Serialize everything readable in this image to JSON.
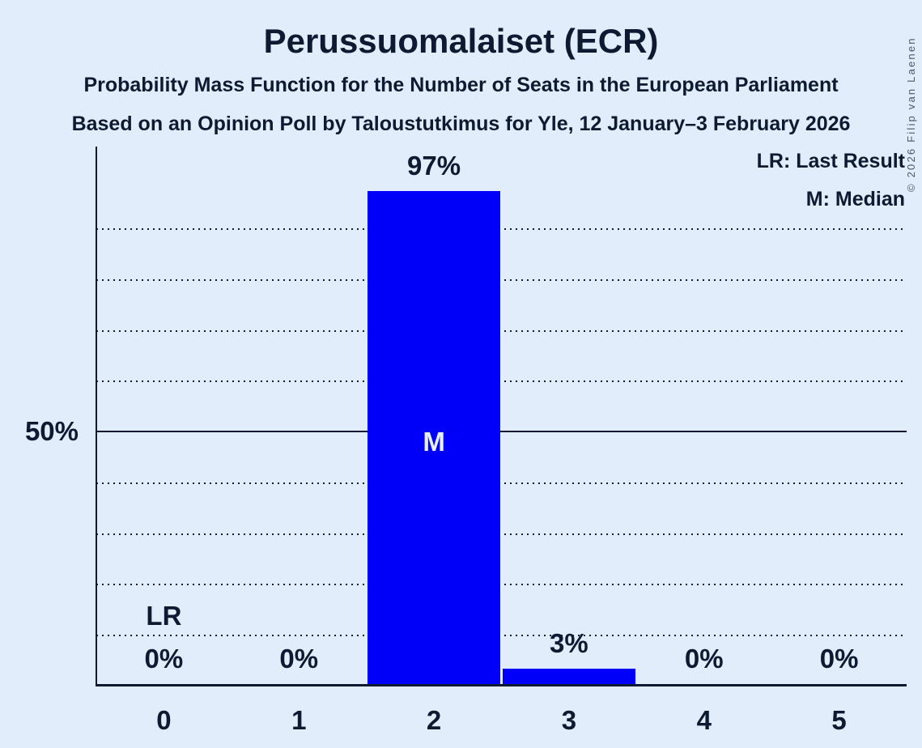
{
  "header": {
    "title": "Perussuomalaiset (ECR)",
    "subtitle_line1": "Probability Mass Function for the Number of Seats in the European Parliament",
    "subtitle_line2": "Based on an Opinion Poll by Taloustutkimus for Yle, 12 January–3 February 2026"
  },
  "legend": {
    "last_result": "LR: Last Result",
    "median": "M: Median"
  },
  "copyright": "© 2026 Filip van Laenen",
  "chart_data": {
    "type": "bar",
    "title": "Perussuomalaiset (ECR)",
    "categories": [
      "0",
      "1",
      "2",
      "3",
      "4",
      "5"
    ],
    "values": [
      0,
      0,
      97,
      3,
      0,
      0
    ],
    "value_labels": [
      "0%",
      "0%",
      "97%",
      "3%",
      "0%",
      "0%"
    ],
    "xlabel": "",
    "ylabel": "",
    "ylim": [
      0,
      100
    ],
    "y_tick_label": "50%",
    "y_tick_pct": 50,
    "gridlines_pct": [
      10,
      20,
      30,
      40,
      50,
      60,
      70,
      80,
      90
    ],
    "solid_gridline_pct": 50,
    "grid": true,
    "legend_position": "top-right",
    "median_category": "2",
    "median_marker": "M",
    "last_result_category": "0",
    "last_result_marker": "LR",
    "colors": {
      "background": "#E2EDFC",
      "bar": "#0000FA",
      "text": "#0D1A32",
      "bar_label": "#EAF0FB",
      "copyright": "#4A5670"
    }
  }
}
